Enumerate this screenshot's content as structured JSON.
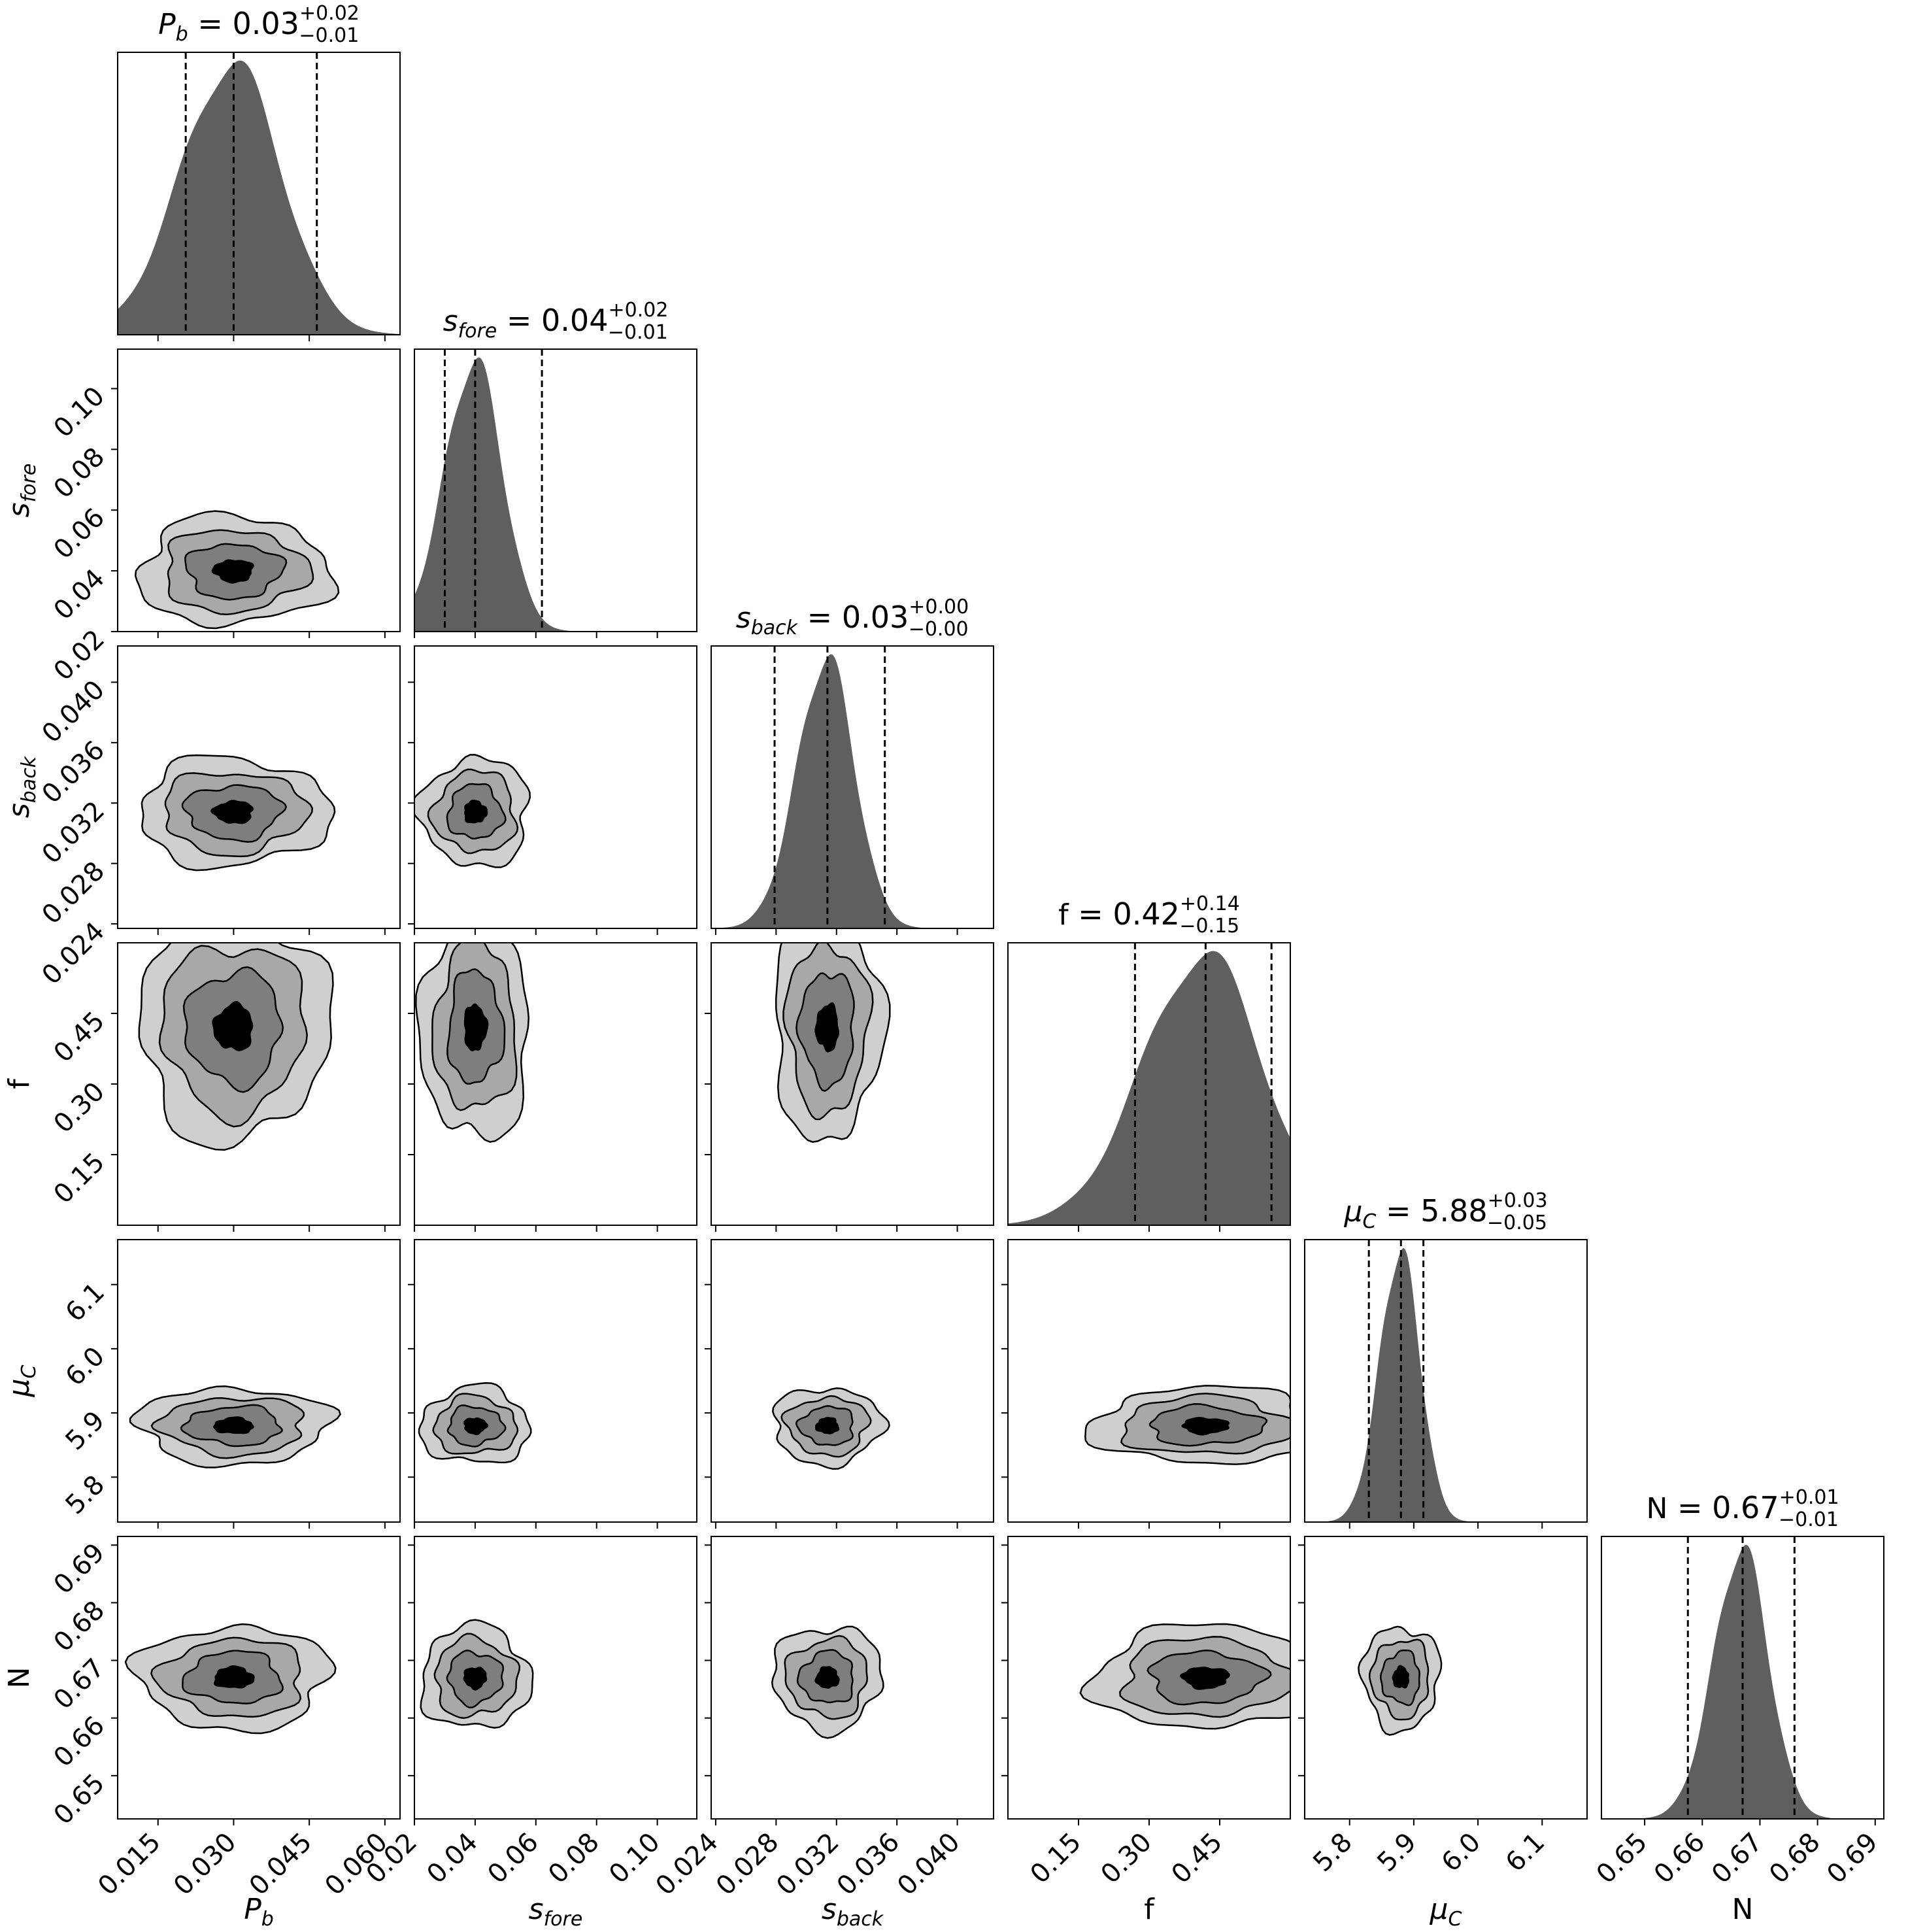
{
  "chart_data": {
    "type": "corner",
    "description_type": "corner plot of 1D marginal histograms and 2D contour density panels",
    "colors": {
      "histogram_fill": "#5f5f5f",
      "contour_outer": "#cfcfcf",
      "contour_mid1": "#a8a8a8",
      "contour_mid2": "#7e7e7e",
      "contour_inner": "#000000",
      "frame": "#000000",
      "quantile_line": "#000000"
    },
    "parameters": [
      {
        "key": "Pb",
        "symbol": "P",
        "subscript": "b",
        "italic": true,
        "range": [
          0.007,
          0.063
        ],
        "ticks": [
          0.015,
          0.03,
          0.045,
          0.06
        ],
        "tick_labels": [
          "0.015",
          "0.030",
          "0.045",
          "0.060"
        ],
        "median": 0.03,
        "q16": 0.0205,
        "q84": 0.0465,
        "sigma": 0.0095,
        "title_value": "0.03",
        "title_plus": "+0.02",
        "title_minus": "−0.01"
      },
      {
        "key": "sfore",
        "symbol": "s",
        "subscript": "fore",
        "italic": true,
        "range": [
          0.02,
          0.113
        ],
        "ticks": [
          0.02,
          0.04,
          0.06,
          0.08,
          0.1
        ],
        "tick_labels": [
          "0.02",
          "0.04",
          "0.06",
          "0.08",
          "0.10"
        ],
        "median": 0.04,
        "q16": 0.03,
        "q84": 0.062,
        "sigma": 0.009,
        "title_value": "0.04",
        "title_plus": "+0.02",
        "title_minus": "−0.01"
      },
      {
        "key": "sback",
        "symbol": "s",
        "subscript": "back",
        "italic": true,
        "range": [
          0.0237,
          0.0424
        ],
        "ticks": [
          0.024,
          0.028,
          0.032,
          0.036,
          0.04
        ],
        "tick_labels": [
          "0.024",
          "0.028",
          "0.032",
          "0.036",
          "0.040"
        ],
        "median": 0.0314,
        "q16": 0.0279,
        "q84": 0.0352,
        "sigma": 0.0018,
        "title_value": "0.03",
        "title_plus": "+0.00",
        "title_minus": "−0.00"
      },
      {
        "key": "f",
        "symbol": "f",
        "subscript": "",
        "italic": false,
        "range": [
          0.0,
          0.6
        ],
        "ticks": [
          0.15,
          0.3,
          0.45
        ],
        "tick_labels": [
          "0.15",
          "0.30",
          "0.45"
        ],
        "median": 0.42,
        "q16": 0.27,
        "q84": 0.56,
        "sigma": 0.12,
        "title_value": "0.42",
        "title_plus": "+0.14",
        "title_minus": "−0.15"
      },
      {
        "key": "muC",
        "symbol": "μ",
        "subscript": "C",
        "italic": true,
        "range": [
          5.73,
          6.17
        ],
        "ticks": [
          5.8,
          5.9,
          6.0,
          6.1
        ],
        "tick_labels": [
          "5.8",
          "5.9",
          "6.0",
          "6.1"
        ],
        "median": 5.88,
        "q16": 5.83,
        "q84": 5.915,
        "sigma": 0.03,
        "title_value": "5.88",
        "title_plus": "+0.03",
        "title_minus": "−0.05"
      },
      {
        "key": "N",
        "symbol": "N",
        "subscript": "",
        "italic": false,
        "range": [
          0.6425,
          0.6915
        ],
        "ticks": [
          0.65,
          0.66,
          0.67,
          0.68,
          0.69
        ],
        "tick_labels": [
          "0.65",
          "0.66",
          "0.67",
          "0.68",
          "0.69"
        ],
        "median": 0.667,
        "q16": 0.6575,
        "q84": 0.676,
        "sigma": 0.0045,
        "title_value": "0.67",
        "title_plus": "+0.01",
        "title_minus": "−0.01"
      }
    ],
    "contour_levels_sigma": [
      2.0,
      1.5,
      1.0,
      0.4
    ]
  }
}
